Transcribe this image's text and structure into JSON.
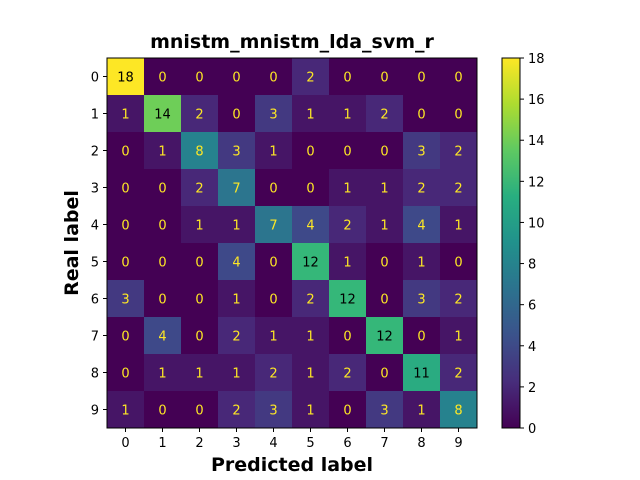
{
  "chart_data": {
    "type": "heatmap",
    "title": "mnistm_mnistm_lda_svm_r",
    "xlabel": "Predicted label",
    "ylabel": "Real label",
    "x_categories": [
      "0",
      "1",
      "2",
      "3",
      "4",
      "5",
      "6",
      "7",
      "8",
      "9"
    ],
    "y_categories": [
      "0",
      "1",
      "2",
      "3",
      "4",
      "5",
      "6",
      "7",
      "8",
      "9"
    ],
    "matrix": [
      [
        18,
        0,
        0,
        0,
        0,
        2,
        0,
        0,
        0,
        0
      ],
      [
        1,
        14,
        2,
        0,
        3,
        1,
        1,
        2,
        0,
        0
      ],
      [
        0,
        1,
        8,
        3,
        1,
        0,
        0,
        0,
        3,
        2
      ],
      [
        0,
        0,
        2,
        7,
        0,
        0,
        1,
        1,
        2,
        2
      ],
      [
        0,
        0,
        1,
        1,
        7,
        4,
        2,
        1,
        4,
        1
      ],
      [
        0,
        0,
        0,
        4,
        0,
        12,
        1,
        0,
        1,
        0
      ],
      [
        3,
        0,
        0,
        1,
        0,
        2,
        12,
        0,
        3,
        2
      ],
      [
        0,
        4,
        0,
        2,
        1,
        1,
        0,
        12,
        0,
        1
      ],
      [
        0,
        1,
        1,
        1,
        2,
        1,
        2,
        0,
        11,
        2
      ],
      [
        1,
        0,
        0,
        2,
        3,
        1,
        0,
        3,
        1,
        8
      ]
    ],
    "colormap": "viridis",
    "vmin": 0,
    "vmax": 18,
    "colorbar_ticks": [
      "0",
      "2",
      "4",
      "6",
      "8",
      "10",
      "12",
      "14",
      "16",
      "18"
    ],
    "text_color_light": "#fde725",
    "text_color_dark": "#000000"
  }
}
